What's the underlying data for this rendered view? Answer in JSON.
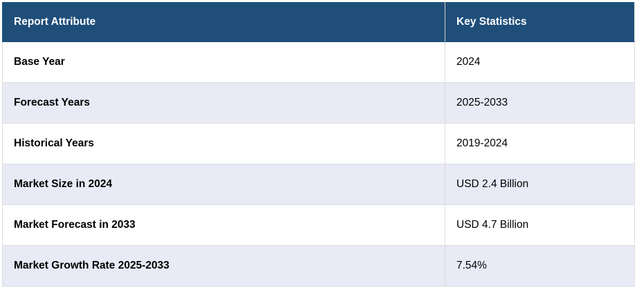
{
  "table": {
    "header": [
      "Report Attribute",
      "Key Statistics"
    ],
    "rows": [
      [
        "Base Year",
        "2024"
      ],
      [
        "Forecast Years",
        "2025-2033"
      ],
      [
        "Historical Years",
        "2019-2024"
      ],
      [
        "Market Size in 2024",
        "USD 2.4 Billion"
      ],
      [
        "Market Forecast in 2033",
        "USD 4.7 Billion"
      ],
      [
        "Market Growth Rate 2025-2033",
        "7.54%"
      ]
    ]
  }
}
